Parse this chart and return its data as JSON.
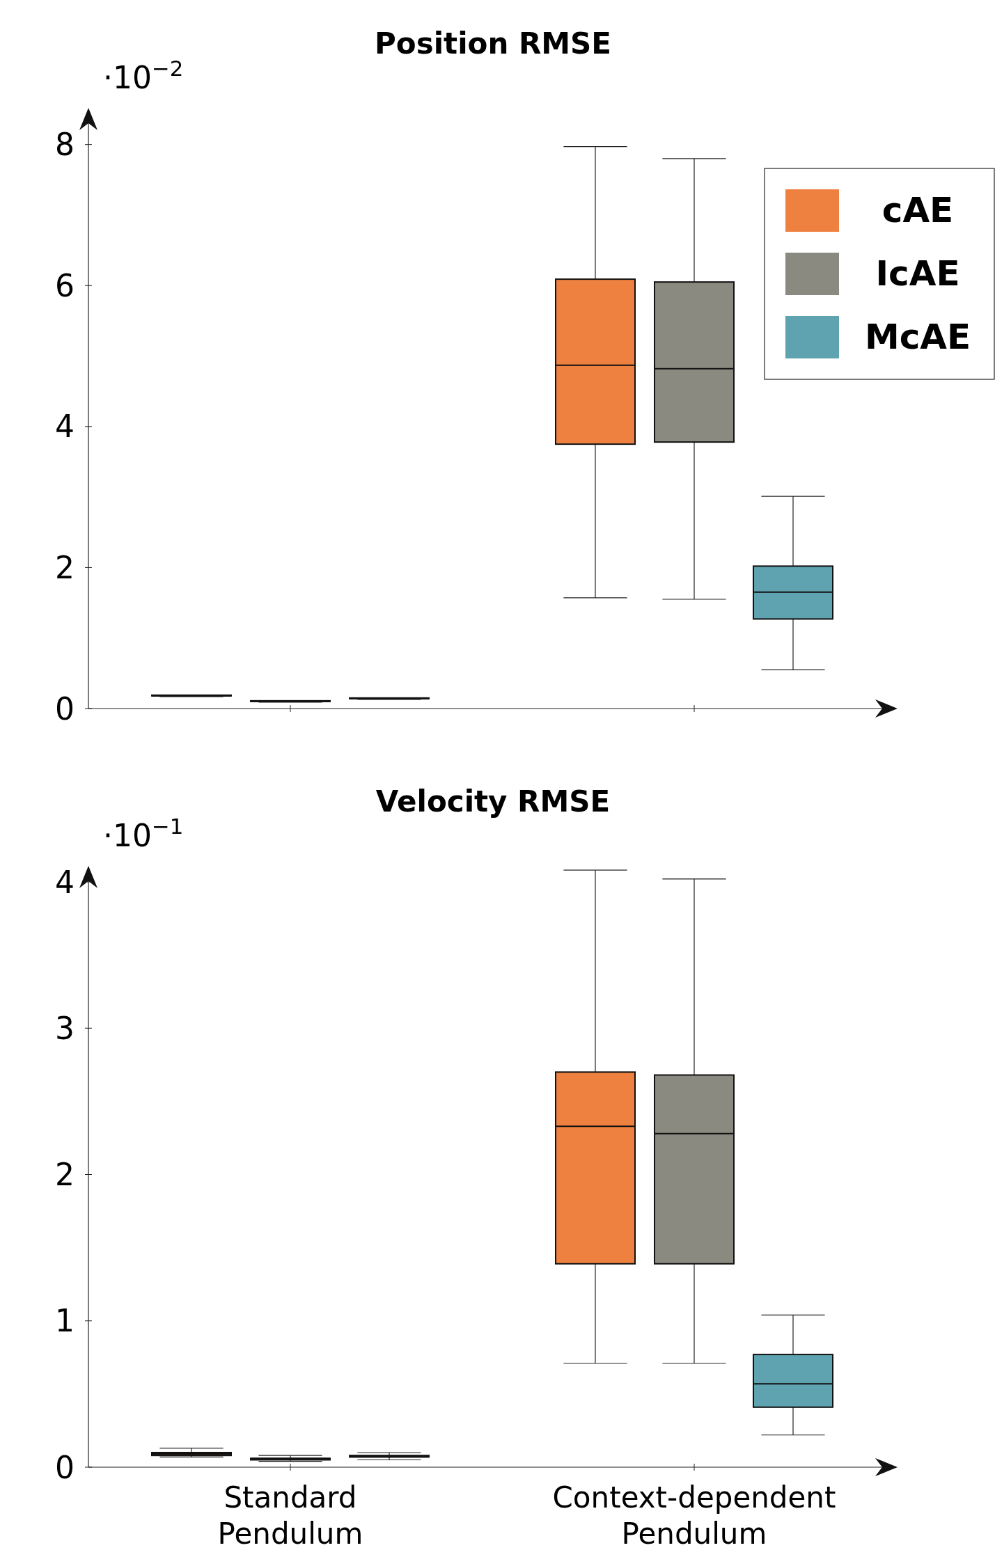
{
  "chart_data": [
    {
      "type": "box",
      "title": "Position RMSE",
      "categories": [
        null,
        null
      ],
      "ylim": [
        0,
        8.5
      ],
      "yticks": [
        0,
        2,
        4,
        6,
        8
      ],
      "annotations": [
        "·10$^{−2}$"
      ],
      "legend": "top right",
      "series": [
        {
          "name": "cAE",
          "color": "#ef8140",
          "boxes": [
            {
              "low": 0.17,
              "q1": 0.18,
              "median": 0.18,
              "q3": 0.19,
              "high": 0.19
            },
            {
              "low": 1.57,
              "q1": 3.75,
              "median": 4.87,
              "q3": 6.09,
              "high": 7.97
            }
          ]
        },
        {
          "name": "IcAE",
          "color": "#8a8a80",
          "boxes": [
            {
              "low": 0.09,
              "q1": 0.1,
              "median": 0.1,
              "q3": 0.11,
              "high": 0.11
            },
            {
              "low": 1.55,
              "q1": 3.78,
              "median": 4.82,
              "q3": 6.05,
              "high": 7.8
            }
          ]
        },
        {
          "name": "McAE",
          "color": "#5fa3b0",
          "boxes": [
            {
              "low": 0.13,
              "q1": 0.14,
              "median": 0.14,
              "q3": 0.15,
              "high": 0.15
            },
            {
              "low": 0.55,
              "q1": 1.27,
              "median": 1.65,
              "q3": 2.02,
              "high": 3.01
            }
          ]
        }
      ]
    },
    {
      "type": "box",
      "title": "Velocity RMSE",
      "categories": [
        "Standard Pendulum",
        "Context-dependent Pendulum"
      ],
      "ylim": [
        0,
        4.1
      ],
      "yticks": [
        0,
        1,
        2,
        3,
        4
      ],
      "annotations": [
        "·10$^{−1}$"
      ],
      "series": [
        {
          "color": "#ef8140",
          "boxes": [
            {
              "low": 0.07,
              "q1": 0.08,
              "median": 0.09,
              "q3": 0.1,
              "high": 0.13
            },
            {
              "low": 0.71,
              "q1": 1.39,
              "median": 2.33,
              "q3": 2.7,
              "high": 4.08
            }
          ]
        },
        {
          "color": "#8a8a80",
          "boxes": [
            {
              "low": 0.04,
              "q1": 0.05,
              "median": 0.06,
              "q3": 0.06,
              "high": 0.08
            },
            {
              "low": 0.71,
              "q1": 1.39,
              "median": 2.28,
              "q3": 2.68,
              "high": 4.02
            }
          ]
        },
        {
          "color": "#5fa3b0",
          "boxes": [
            {
              "low": 0.05,
              "q1": 0.07,
              "median": 0.07,
              "q3": 0.08,
              "high": 0.1
            },
            {
              "low": 0.22,
              "q1": 0.41,
              "median": 0.57,
              "q3": 0.77,
              "high": 1.04
            }
          ]
        }
      ]
    }
  ]
}
